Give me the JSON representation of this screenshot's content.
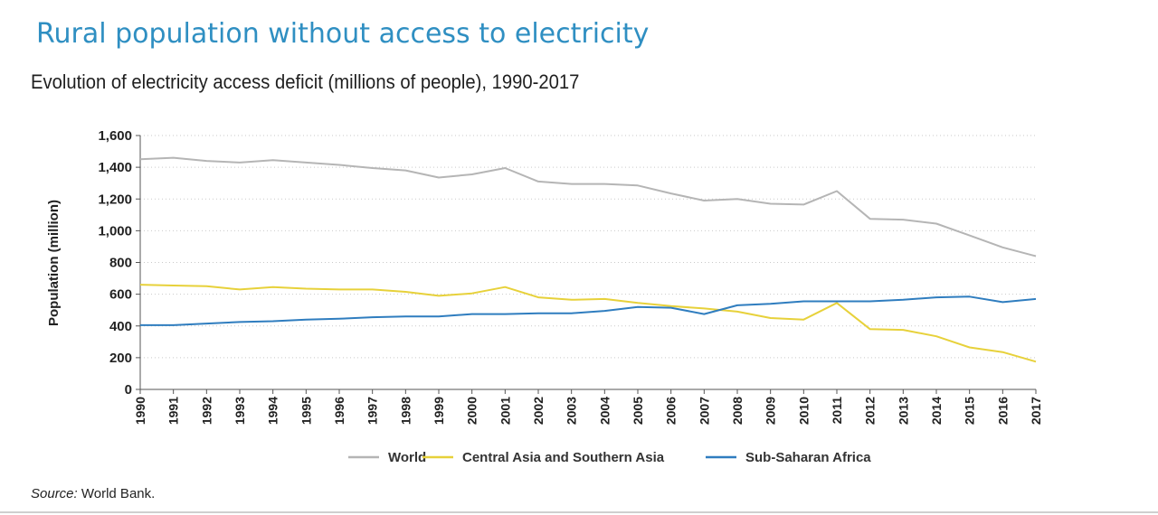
{
  "page": {
    "title": "Rural population without access to electricity",
    "source_label": "Source:",
    "source_text": " World Bank."
  },
  "chart_data": {
    "type": "line",
    "title": "Evolution of electricity access deficit (millions of people), 1990-2017",
    "xlabel": "",
    "ylabel": "Population (million)",
    "ylim": [
      0,
      1600
    ],
    "yticks": [
      0,
      200,
      400,
      600,
      800,
      1000,
      1200,
      1400,
      1600
    ],
    "ytick_labels": [
      "0",
      "200",
      "400",
      "600",
      "800",
      "1,000",
      "1,200",
      "1,400",
      "1,600"
    ],
    "x": [
      "1990",
      "1991",
      "1992",
      "1993",
      "1994",
      "1995",
      "1996",
      "1997",
      "1998",
      "1999",
      "2000",
      "2001",
      "2002",
      "2003",
      "2004",
      "2005",
      "2006",
      "2007",
      "2008",
      "2009",
      "2010",
      "2011",
      "2012",
      "2013",
      "2014",
      "2015",
      "2016",
      "2017"
    ],
    "grid": true,
    "legend_position": "bottom",
    "series": [
      {
        "name": "World",
        "color": "#b5b5b5",
        "values": [
          1450,
          1460,
          1440,
          1430,
          1445,
          1430,
          1415,
          1395,
          1380,
          1335,
          1355,
          1395,
          1310,
          1295,
          1295,
          1285,
          1235,
          1190,
          1200,
          1170,
          1165,
          1250,
          1075,
          1070,
          1045,
          970,
          895,
          840
        ]
      },
      {
        "name": "Central Asia and Southern Asia",
        "color": "#e7d13a",
        "values": [
          660,
          655,
          650,
          630,
          645,
          635,
          630,
          630,
          615,
          590,
          605,
          645,
          580,
          565,
          570,
          545,
          525,
          510,
          490,
          450,
          440,
          545,
          380,
          375,
          335,
          265,
          235,
          175
        ]
      },
      {
        "name": "Sub-Saharan Africa",
        "color": "#2f7dbf",
        "values": [
          405,
          405,
          415,
          425,
          430,
          440,
          445,
          455,
          460,
          460,
          475,
          475,
          480,
          480,
          495,
          520,
          515,
          475,
          530,
          540,
          555,
          555,
          555,
          565,
          580,
          585,
          550,
          570
        ]
      }
    ]
  }
}
